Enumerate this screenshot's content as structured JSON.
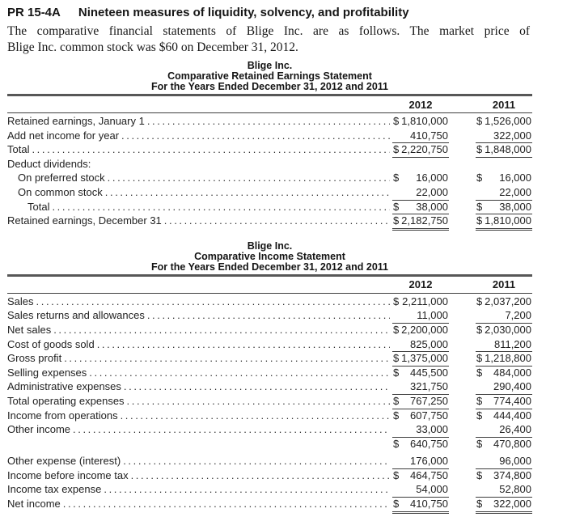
{
  "problem": {
    "number": "PR 15-4A",
    "title": "Nineteen measures of liquidity, solvency, and profitability"
  },
  "intro": {
    "line1": "The comparative financial statements of Blige Inc. are as follows. The market price of",
    "line2": "Blige Inc. common stock was $60 on December 31, 2012."
  },
  "tables": [
    {
      "name": "retained-earnings-statement",
      "title_lines": [
        "Blige Inc.",
        "Comparative Retained Earnings Statement",
        "For the Years Ended December 31, 2012 and 2011"
      ],
      "columns": [
        "2012",
        "2011"
      ],
      "rows": [
        {
          "label": "Retained earnings, January 1",
          "indent": 0,
          "dots": true,
          "cells": [
            {
              "cur": "$",
              "val": "1,810,000",
              "u": "none"
            },
            {
              "cur": "$",
              "val": "1,526,000",
              "u": "none"
            }
          ]
        },
        {
          "label": "Add net income for year",
          "indent": 0,
          "dots": true,
          "cells": [
            {
              "cur": "",
              "val": "410,750",
              "u": "single"
            },
            {
              "cur": "",
              "val": "322,000",
              "u": "single"
            }
          ]
        },
        {
          "label": "Total",
          "indent": 0,
          "dots": true,
          "cells": [
            {
              "cur": "$",
              "val": "2,220,750",
              "u": "single"
            },
            {
              "cur": "$",
              "val": "1,848,000",
              "u": "single"
            }
          ]
        },
        {
          "label": "Deduct dividends:",
          "indent": 0,
          "dots": false,
          "cells": [
            null,
            null
          ]
        },
        {
          "label": "On preferred stock",
          "indent": 1,
          "dots": true,
          "cells": [
            {
              "cur": "$",
              "val": "16,000",
              "u": "none"
            },
            {
              "cur": "$",
              "val": "16,000",
              "u": "none"
            }
          ]
        },
        {
          "label": "On common stock",
          "indent": 1,
          "dots": true,
          "cells": [
            {
              "cur": "",
              "val": "22,000",
              "u": "single"
            },
            {
              "cur": "",
              "val": "22,000",
              "u": "single"
            }
          ]
        },
        {
          "label": "Total",
          "indent": 2,
          "dots": true,
          "cells": [
            {
              "cur": "$",
              "val": "38,000",
              "u": "single"
            },
            {
              "cur": "$",
              "val": "38,000",
              "u": "single"
            }
          ]
        },
        {
          "label": "Retained earnings, December 31",
          "indent": 0,
          "dots": true,
          "cells": [
            {
              "cur": "$",
              "val": "2,182,750",
              "u": "double"
            },
            {
              "cur": "$",
              "val": "1,810,000",
              "u": "double"
            }
          ]
        }
      ]
    },
    {
      "name": "income-statement",
      "title_lines": [
        "Blige Inc.",
        "Comparative Income Statement",
        "For the Years Ended December 31, 2012 and 2011"
      ],
      "columns": [
        "2012",
        "2011"
      ],
      "rows": [
        {
          "label": "Sales",
          "indent": 0,
          "dots": true,
          "cells": [
            {
              "cur": "$",
              "val": "2,211,000",
              "u": "none"
            },
            {
              "cur": "$",
              "val": "2,037,200",
              "u": "none"
            }
          ]
        },
        {
          "label": "Sales returns and allowances",
          "indent": 0,
          "dots": true,
          "cells": [
            {
              "cur": "",
              "val": "11,000",
              "u": "single"
            },
            {
              "cur": "",
              "val": "7,200",
              "u": "single"
            }
          ]
        },
        {
          "label": "Net sales",
          "indent": 0,
          "dots": true,
          "cells": [
            {
              "cur": "$",
              "val": "2,200,000",
              "u": "none"
            },
            {
              "cur": "$",
              "val": "2,030,000",
              "u": "none"
            }
          ]
        },
        {
          "label": "Cost of goods sold",
          "indent": 0,
          "dots": true,
          "cells": [
            {
              "cur": "",
              "val": "825,000",
              "u": "single"
            },
            {
              "cur": "",
              "val": "811,200",
              "u": "single"
            }
          ]
        },
        {
          "label": "Gross profit",
          "indent": 0,
          "dots": true,
          "cells": [
            {
              "cur": "$",
              "val": "1,375,000",
              "u": "single"
            },
            {
              "cur": "$",
              "val": "1,218,800",
              "u": "single"
            }
          ]
        },
        {
          "label": "Selling expenses",
          "indent": 0,
          "dots": true,
          "cells": [
            {
              "cur": "$",
              "val": "445,500",
              "u": "none"
            },
            {
              "cur": "$",
              "val": "484,000",
              "u": "none"
            }
          ]
        },
        {
          "label": "Administrative expenses",
          "indent": 0,
          "dots": true,
          "cells": [
            {
              "cur": "",
              "val": "321,750",
              "u": "single"
            },
            {
              "cur": "",
              "val": "290,400",
              "u": "single"
            }
          ]
        },
        {
          "label": "Total operating expenses",
          "indent": 0,
          "dots": true,
          "cells": [
            {
              "cur": "$",
              "val": "767,250",
              "u": "single"
            },
            {
              "cur": "$",
              "val": "774,400",
              "u": "single"
            }
          ]
        },
        {
          "label": "Income from operations",
          "indent": 0,
          "dots": true,
          "cells": [
            {
              "cur": "$",
              "val": "607,750",
              "u": "none"
            },
            {
              "cur": "$",
              "val": "444,400",
              "u": "none"
            }
          ]
        },
        {
          "label": "Other income",
          "indent": 0,
          "dots": true,
          "cells": [
            {
              "cur": "",
              "val": "33,000",
              "u": "single"
            },
            {
              "cur": "",
              "val": "26,400",
              "u": "single"
            }
          ]
        },
        {
          "label": "",
          "indent": 0,
          "dots": false,
          "cells": [
            {
              "cur": "$",
              "val": "640,750",
              "u": "none"
            },
            {
              "cur": "$",
              "val": "470,800",
              "u": "none"
            }
          ]
        },
        {
          "label": "Other expense (interest)",
          "indent": 0,
          "dots": true,
          "space_before": true,
          "cells": [
            {
              "cur": "",
              "val": "176,000",
              "u": "single"
            },
            {
              "cur": "",
              "val": "96,000",
              "u": "single"
            }
          ]
        },
        {
          "label": "Income before income tax",
          "indent": 0,
          "dots": true,
          "cells": [
            {
              "cur": "$",
              "val": "464,750",
              "u": "none"
            },
            {
              "cur": "$",
              "val": "374,800",
              "u": "none"
            }
          ]
        },
        {
          "label": "Income tax expense",
          "indent": 0,
          "dots": true,
          "cells": [
            {
              "cur": "",
              "val": "54,000",
              "u": "single"
            },
            {
              "cur": "",
              "val": "52,800",
              "u": "single"
            }
          ]
        },
        {
          "label": "Net income",
          "indent": 0,
          "dots": true,
          "cells": [
            {
              "cur": "$",
              "val": "410,750",
              "u": "double"
            },
            {
              "cur": "$",
              "val": "322,000",
              "u": "double"
            }
          ]
        }
      ]
    }
  ]
}
